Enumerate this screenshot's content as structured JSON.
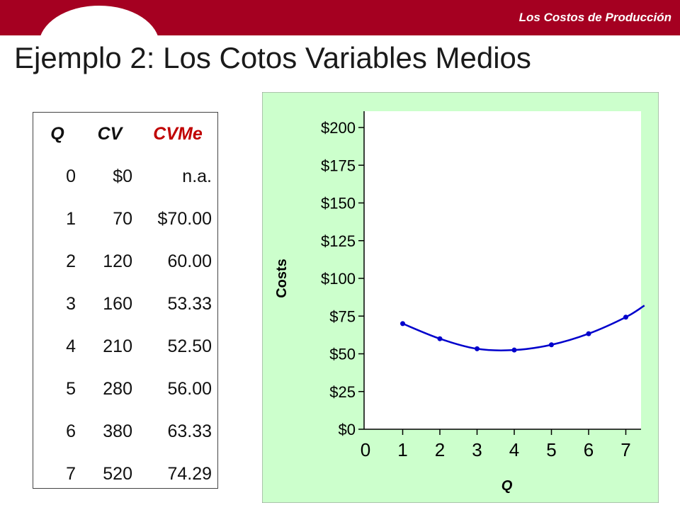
{
  "header": {
    "section_label": "Los Costos de Producción"
  },
  "page": {
    "title": "Ejemplo 2: Los Cotos Variables Medios"
  },
  "colors": {
    "header_bar": "#a50021",
    "chart_background": "#ccffcc",
    "series_line": "#0000cc",
    "accent_text": "#c00000"
  },
  "table": {
    "headers": [
      "Q",
      "CV",
      "CVMe"
    ],
    "rows": [
      [
        "0",
        "$0",
        "n.a."
      ],
      [
        "1",
        "70",
        "$70.00"
      ],
      [
        "2",
        "120",
        "60.00"
      ],
      [
        "3",
        "160",
        "53.33"
      ],
      [
        "4",
        "210",
        "52.50"
      ],
      [
        "5",
        "280",
        "56.00"
      ],
      [
        "6",
        "380",
        "63.33"
      ],
      [
        "7",
        "520",
        "74.29"
      ]
    ]
  },
  "chart_data": {
    "type": "line",
    "xlabel": "Q",
    "ylabel": "Costs",
    "xlim": [
      0,
      7.5
    ],
    "ylim": [
      0,
      200
    ],
    "x_ticks": [
      "0",
      "1",
      "2",
      "3",
      "4",
      "5",
      "6",
      "7"
    ],
    "y_ticks": [
      "$0",
      "$25",
      "$50",
      "$75",
      "$100",
      "$125",
      "$150",
      "$175",
      "$200"
    ],
    "grid": false,
    "series": [
      {
        "x": [
          1,
          2,
          3,
          4,
          5,
          6,
          7
        ],
        "y": [
          70,
          60,
          53.33,
          52.5,
          56,
          63.33,
          74.29
        ],
        "extends_to": [
          7.5,
          82
        ]
      }
    ]
  }
}
